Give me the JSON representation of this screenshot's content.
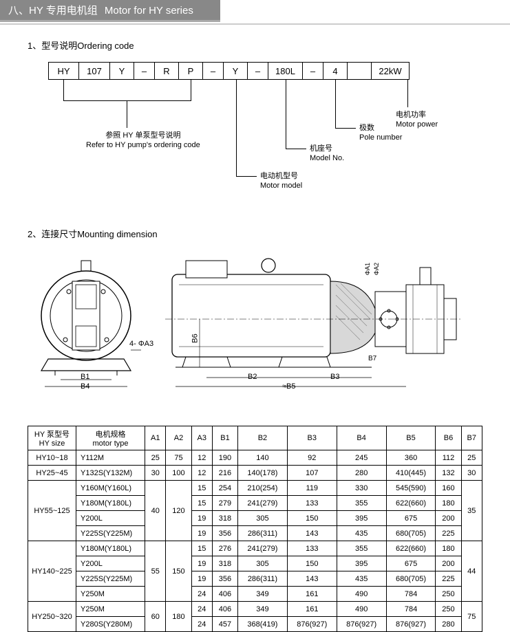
{
  "header": {
    "title_cn": "八、HY 专用电机组",
    "title_en": "Motor for HY series"
  },
  "section1": {
    "label": "1、型号说明Ordering code"
  },
  "code_boxes": [
    "HY",
    "107",
    "Y",
    "–",
    "R",
    "P",
    "–",
    "Y",
    "–",
    "180L",
    "–",
    "4",
    "",
    "22kW"
  ],
  "annotations": {
    "pump": {
      "cn": "参照 HY 单泵型号说明",
      "en": "Refer to HY pump's ordering code"
    },
    "motor_model": {
      "cn": "电动机型号",
      "en": "Motor model"
    },
    "model_no": {
      "cn": "机座号",
      "en": "Model No."
    },
    "pole": {
      "cn": "极数",
      "en": "Pole number"
    },
    "power": {
      "cn": "电机功率",
      "en": "Motor power"
    }
  },
  "section2": {
    "label": "2、连接尺寸Mounting dimension"
  },
  "dim_labels": {
    "b1": "B1",
    "b2": "B2",
    "b3": "B3",
    "b4": "B4",
    "b5": "≈B5",
    "b6": "B6",
    "b7": "B7",
    "a3": "4- ΦA3",
    "a1": "ΦA1",
    "a2": "ΦA2"
  },
  "table": {
    "header": {
      "hy_size_cn": "HY 泵型号",
      "hy_size_en": "HY size",
      "motor_cn": "电机规格",
      "motor_en": "motor type",
      "cols": [
        "A1",
        "A2",
        "A3",
        "B1",
        "B2",
        "B3",
        "B4",
        "B5",
        "B6",
        "B7"
      ]
    },
    "rows": [
      {
        "size": "HY10~18",
        "motor": "Y112M",
        "v": [
          "25",
          "75",
          "12",
          "190",
          "140",
          "92",
          "245",
          "360",
          "112",
          "25"
        ]
      },
      {
        "size": "HY25~45",
        "motor": "Y132S(Y132M)",
        "v": [
          "30",
          "100",
          "12",
          "216",
          "140(178)",
          "107",
          "280",
          "410(445)",
          "132",
          "30"
        ]
      },
      {
        "size": "HY55~125",
        "motor": "Y160M(Y160L)",
        "v": [
          "40",
          "120",
          "15",
          "254",
          "210(254)",
          "119",
          "330",
          "545(590)",
          "160",
          "35"
        ]
      },
      {
        "size": "",
        "motor": "Y180M(Y180L)",
        "v": [
          "",
          "",
          "15",
          "279",
          "241(279)",
          "133",
          "355",
          "622(660)",
          "180",
          ""
        ]
      },
      {
        "size": "",
        "motor": "Y200L",
        "v": [
          "",
          "",
          "19",
          "318",
          "305",
          "150",
          "395",
          "675",
          "200",
          ""
        ]
      },
      {
        "size": "",
        "motor": "Y225S(Y225M)",
        "v": [
          "",
          "",
          "19",
          "356",
          "286(311)",
          "143",
          "435",
          "680(705)",
          "225",
          ""
        ]
      },
      {
        "size": "HY140~225",
        "motor": "Y180M(Y180L)",
        "v": [
          "55",
          "150",
          "15",
          "276",
          "241(279)",
          "133",
          "355",
          "622(660)",
          "180",
          "44"
        ]
      },
      {
        "size": "",
        "motor": "Y200L",
        "v": [
          "",
          "",
          "19",
          "318",
          "305",
          "150",
          "395",
          "675",
          "200",
          ""
        ]
      },
      {
        "size": "",
        "motor": "Y225S(Y225M)",
        "v": [
          "",
          "",
          "19",
          "356",
          "286(311)",
          "143",
          "435",
          "680(705)",
          "225",
          ""
        ]
      },
      {
        "size": "",
        "motor": "Y250M",
        "v": [
          "",
          "",
          "24",
          "406",
          "349",
          "161",
          "490",
          "784",
          "250",
          ""
        ]
      },
      {
        "size": "HY250~320",
        "motor": "Y250M",
        "v": [
          "60",
          "180",
          "24",
          "406",
          "349",
          "161",
          "490",
          "784",
          "250",
          "75"
        ]
      },
      {
        "size": "",
        "motor": "Y280S(Y280M)",
        "v": [
          "",
          "",
          "24",
          "457",
          "368(419)",
          "876(927)",
          "876(927)",
          "876(927)",
          "280",
          ""
        ]
      }
    ],
    "raw": [
      [
        "HY10~18",
        "Y112M",
        "25",
        "75",
        "12",
        "190",
        "140",
        "92",
        "245",
        "360",
        "112",
        "25"
      ],
      [
        "HY25~45",
        "Y132S(Y132M)",
        "30",
        "100",
        "12",
        "216",
        "140(178)",
        "107",
        "280",
        "410(445)",
        "132",
        "30"
      ],
      [
        "HY55~125",
        "Y160M(Y160L)",
        "40",
        "120",
        "15",
        "254",
        "210(254)",
        "119",
        "330",
        "545(590)",
        "160",
        "35"
      ],
      [
        "",
        "Y180M(Y180L)",
        "",
        "",
        "15",
        "279",
        "241(279)",
        "133",
        "355",
        "622(660)",
        "180",
        ""
      ],
      [
        "",
        "Y200L",
        "",
        "",
        "19",
        "318",
        "305",
        "150",
        "395",
        "675",
        "200",
        ""
      ],
      [
        "",
        "Y225S(Y225M)",
        "",
        "",
        "19",
        "356",
        "286(311)",
        "143",
        "435",
        "680(705)",
        "225",
        ""
      ],
      [
        "HY140~225",
        "Y180M(Y180L)",
        "55",
        "150",
        "15",
        "276",
        "241(279)",
        "133",
        "355",
        "622(660)",
        "180",
        "44"
      ],
      [
        "",
        "Y200L",
        "",
        "",
        "19",
        "318",
        "305",
        "150",
        "395",
        "675",
        "200",
        ""
      ],
      [
        "",
        "Y225S(Y225M)",
        "",
        "",
        "19",
        "356",
        "286(311)",
        "143",
        "435",
        "680(705)",
        "225",
        ""
      ],
      [
        "",
        "Y250M",
        "",
        "",
        "24",
        "406",
        "349",
        "161",
        "490",
        "784",
        "250",
        ""
      ],
      [
        "HY250~320",
        "Y250M",
        "60",
        "180",
        "24",
        "406",
        "349",
        "161",
        "490",
        "784",
        "250",
        "75"
      ],
      [
        "",
        "Y280S(Y280M)",
        "",
        "",
        "24",
        "457",
        "368(419)",
        "876(927)",
        "876(927)",
        "876(927)",
        "280",
        ""
      ]
    ]
  },
  "colors": {
    "header_bg": "#888888",
    "header_text": "#ffffff",
    "line": "#000000",
    "hatch": "#808080"
  }
}
